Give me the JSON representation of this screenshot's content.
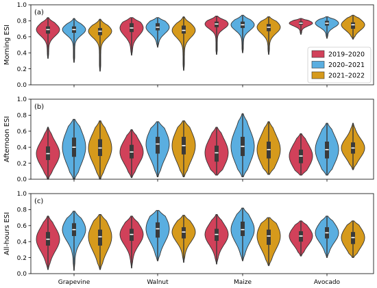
{
  "chart_data": [
    {
      "type": "violin",
      "panel_label": "(a)",
      "ylabel": "Morning ESI",
      "ylim": [
        0.0,
        1.0
      ],
      "yticks": [
        "0.0",
        "0.2",
        "0.4",
        "0.6",
        "0.8",
        "1.0"
      ],
      "categories": [
        "Grapevine",
        "Walnut",
        "Maize",
        "Avocado"
      ],
      "legend": {
        "placement": "center-right",
        "entries": [
          "2019–2020",
          "2020–2021",
          "2021–2022"
        ]
      },
      "series": [
        {
          "name": "2019–2020",
          "color": "#d1415a",
          "stats": [
            {
              "min": 0.33,
              "q1": 0.64,
              "median": 0.69,
              "q3": 0.73,
              "max": 0.84
            },
            {
              "min": 0.37,
              "q1": 0.66,
              "median": 0.71,
              "q3": 0.77,
              "max": 0.84
            },
            {
              "min": 0.38,
              "q1": 0.72,
              "median": 0.76,
              "q3": 0.79,
              "max": 0.86
            },
            {
              "min": 0.63,
              "q1": 0.75,
              "median": 0.77,
              "q3": 0.79,
              "max": 0.83
            }
          ]
        },
        {
          "name": "2020–2021",
          "color": "#5aaee0",
          "stats": [
            {
              "min": 0.28,
              "q1": 0.65,
              "median": 0.69,
              "q3": 0.73,
              "max": 0.83
            },
            {
              "min": 0.47,
              "q1": 0.68,
              "median": 0.72,
              "q3": 0.77,
              "max": 0.84
            },
            {
              "min": 0.4,
              "q1": 0.71,
              "median": 0.75,
              "q3": 0.79,
              "max": 0.87
            },
            {
              "min": 0.58,
              "q1": 0.74,
              "median": 0.77,
              "q3": 0.8,
              "max": 0.85
            }
          ]
        },
        {
          "name": "2021–2022",
          "color": "#d69a1c",
          "stats": [
            {
              "min": 0.17,
              "q1": 0.62,
              "median": 0.67,
              "q3": 0.71,
              "max": 0.82
            },
            {
              "min": 0.18,
              "q1": 0.64,
              "median": 0.68,
              "q3": 0.74,
              "max": 0.85
            },
            {
              "min": 0.38,
              "q1": 0.67,
              "median": 0.72,
              "q3": 0.76,
              "max": 0.85
            },
            {
              "min": 0.57,
              "q1": 0.7,
              "median": 0.75,
              "q3": 0.78,
              "max": 0.87
            }
          ]
        }
      ]
    },
    {
      "type": "violin",
      "panel_label": "(b)",
      "ylabel": "Afternoon ESI",
      "ylim": [
        0.0,
        1.0
      ],
      "yticks": [
        "0.0",
        "0.2",
        "0.4",
        "0.6",
        "0.8",
        "1.0"
      ],
      "categories": [
        "Grapevine",
        "Walnut",
        "Maize",
        "Avocado"
      ],
      "series": [
        {
          "name": "2019–2020",
          "color": "#d1415a",
          "stats": [
            {
              "min": 0.0,
              "q1": 0.24,
              "median": 0.32,
              "q3": 0.41,
              "max": 0.65
            },
            {
              "min": 0.02,
              "q1": 0.26,
              "median": 0.34,
              "q3": 0.43,
              "max": 0.62
            },
            {
              "min": 0.05,
              "q1": 0.22,
              "median": 0.33,
              "q3": 0.42,
              "max": 0.65
            },
            {
              "min": 0.05,
              "q1": 0.2,
              "median": 0.29,
              "q3": 0.37,
              "max": 0.57
            }
          ]
        },
        {
          "name": "2020–2021",
          "color": "#5aaee0",
          "stats": [
            {
              "min": 0.0,
              "q1": 0.28,
              "median": 0.4,
              "q3": 0.52,
              "max": 0.75
            },
            {
              "min": 0.03,
              "q1": 0.32,
              "median": 0.44,
              "q3": 0.53,
              "max": 0.72
            },
            {
              "min": 0.03,
              "q1": 0.29,
              "median": 0.41,
              "q3": 0.53,
              "max": 0.82
            },
            {
              "min": 0.05,
              "q1": 0.26,
              "median": 0.37,
              "q3": 0.47,
              "max": 0.7
            }
          ]
        },
        {
          "name": "2021–2022",
          "color": "#d69a1c",
          "stats": [
            {
              "min": 0.0,
              "q1": 0.29,
              "median": 0.39,
              "q3": 0.5,
              "max": 0.73
            },
            {
              "min": 0.03,
              "q1": 0.31,
              "median": 0.42,
              "q3": 0.53,
              "max": 0.73
            },
            {
              "min": 0.06,
              "q1": 0.26,
              "median": 0.37,
              "q3": 0.47,
              "max": 0.72
            },
            {
              "min": 0.12,
              "q1": 0.32,
              "median": 0.39,
              "q3": 0.46,
              "max": 0.7
            }
          ]
        }
      ]
    },
    {
      "type": "violin",
      "panel_label": "(c)",
      "ylabel": "All-hours ESI",
      "ylim": [
        0.0,
        1.0
      ],
      "yticks": [
        "0.0",
        "0.2",
        "0.4",
        "0.6",
        "0.8",
        "1.0"
      ],
      "categories": [
        "Grapevine",
        "Walnut",
        "Maize",
        "Avocado"
      ],
      "series": [
        {
          "name": "2019–2020",
          "color": "#d1415a",
          "stats": [
            {
              "min": 0.05,
              "q1": 0.35,
              "median": 0.43,
              "q3": 0.52,
              "max": 0.72
            },
            {
              "min": 0.07,
              "q1": 0.41,
              "median": 0.49,
              "q3": 0.56,
              "max": 0.72
            },
            {
              "min": 0.12,
              "q1": 0.41,
              "median": 0.49,
              "q3": 0.56,
              "max": 0.74
            },
            {
              "min": 0.22,
              "q1": 0.4,
              "median": 0.47,
              "q3": 0.53,
              "max": 0.66
            }
          ]
        },
        {
          "name": "2020–2021",
          "color": "#5aaee0",
          "stats": [
            {
              "min": 0.04,
              "q1": 0.47,
              "median": 0.55,
              "q3": 0.63,
              "max": 0.78
            },
            {
              "min": 0.16,
              "q1": 0.45,
              "median": 0.56,
              "q3": 0.64,
              "max": 0.79
            },
            {
              "min": 0.16,
              "q1": 0.47,
              "median": 0.55,
              "q3": 0.65,
              "max": 0.82
            },
            {
              "min": 0.2,
              "q1": 0.44,
              "median": 0.51,
              "q3": 0.58,
              "max": 0.72
            }
          ]
        },
        {
          "name": "2021–2022",
          "color": "#d69a1c",
          "stats": [
            {
              "min": 0.05,
              "q1": 0.35,
              "median": 0.46,
              "q3": 0.55,
              "max": 0.74
            },
            {
              "min": 0.14,
              "q1": 0.44,
              "median": 0.52,
              "q3": 0.58,
              "max": 0.73
            },
            {
              "min": 0.1,
              "q1": 0.36,
              "median": 0.47,
              "q3": 0.55,
              "max": 0.7
            },
            {
              "min": 0.2,
              "q1": 0.37,
              "median": 0.45,
              "q3": 0.52,
              "max": 0.66
            }
          ]
        }
      ]
    }
  ]
}
